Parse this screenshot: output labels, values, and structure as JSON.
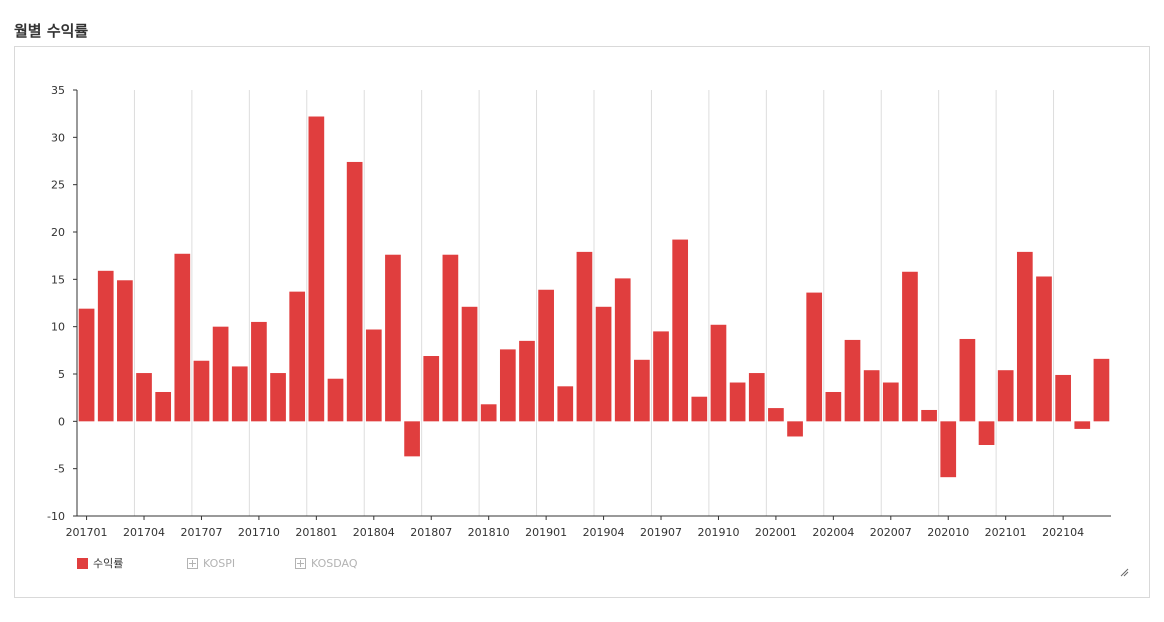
{
  "page": {
    "title": "월별 수익률"
  },
  "colors": {
    "bar": "#e03e3e",
    "grid": "#dddddd",
    "axis": "#333333",
    "legend_off": "#b3b3b3"
  },
  "legend": [
    {
      "name": "수익률",
      "active": true
    },
    {
      "name": "KOSPI",
      "active": false
    },
    {
      "name": "KOSDAQ",
      "active": false
    }
  ],
  "chart_data": {
    "type": "bar",
    "title": "",
    "xlabel": "",
    "ylabel": "",
    "ylim": [
      -10,
      35
    ],
    "yticks": [
      35,
      30,
      25,
      20,
      15,
      10,
      5,
      0,
      -5,
      -10
    ],
    "grid": "vertical",
    "legend_position": "bottom-left",
    "x_tick_labels": [
      "201701",
      "201704",
      "201707",
      "201710",
      "201801",
      "201804",
      "201807",
      "201810",
      "201901",
      "201904",
      "201907",
      "201910",
      "202001",
      "202004",
      "202007",
      "202010",
      "202101",
      "202104"
    ],
    "categories": [
      "201701",
      "201702",
      "201703",
      "201704",
      "201705",
      "201706",
      "201707",
      "201708",
      "201709",
      "201710",
      "201711",
      "201712",
      "201801",
      "201802",
      "201803",
      "201804",
      "201805",
      "201806",
      "201807",
      "201808",
      "201809",
      "201810",
      "201811",
      "201812",
      "201901",
      "201902",
      "201903",
      "201904",
      "201905",
      "201906",
      "201907",
      "201908",
      "201909",
      "201910",
      "201911",
      "201912",
      "202001",
      "202002",
      "202003",
      "202004",
      "202005",
      "202006",
      "202007",
      "202008",
      "202009",
      "202010",
      "202011",
      "202012",
      "202101",
      "202102",
      "202103",
      "202104",
      "202105",
      "202106"
    ],
    "series": [
      {
        "name": "수익률",
        "values": [
          11.9,
          15.9,
          14.9,
          5.1,
          3.1,
          17.7,
          6.4,
          10.0,
          5.8,
          10.5,
          5.1,
          13.7,
          32.2,
          4.5,
          27.4,
          9.7,
          17.6,
          -3.7,
          6.9,
          17.6,
          12.1,
          1.8,
          7.6,
          8.5,
          13.9,
          3.7,
          17.9,
          12.1,
          15.1,
          6.5,
          9.5,
          19.2,
          2.6,
          10.2,
          4.1,
          5.1,
          1.4,
          -1.6,
          13.6,
          3.1,
          8.6,
          5.4,
          4.1,
          15.8,
          1.2,
          -5.9,
          8.7,
          -2.5,
          5.4,
          17.9,
          15.3,
          4.9,
          -0.8,
          6.6
        ]
      }
    ]
  }
}
